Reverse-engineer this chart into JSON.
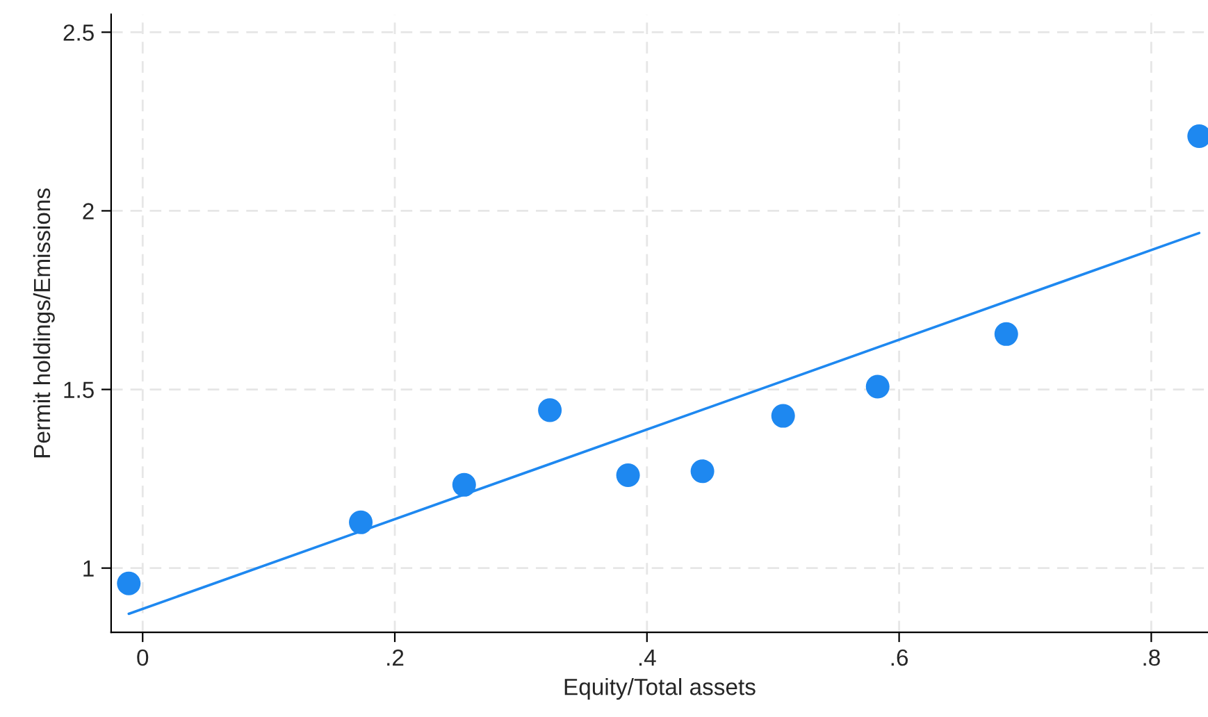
{
  "chart_data": {
    "type": "scatter",
    "xlabel": "Equity/Total assets",
    "ylabel": "Permit holdings/Emissions",
    "series": [
      {
        "color": "#1e88f0",
        "x": [
          -0.011,
          0.173,
          0.255,
          0.323,
          0.385,
          0.444,
          0.508,
          0.583,
          0.685,
          0.838
        ],
        "values": [
          0.957,
          1.128,
          1.233,
          1.442,
          1.26,
          1.271,
          1.426,
          1.508,
          1.655,
          2.209
        ]
      },
      {
        "type": "line",
        "marker": "none",
        "color": "#1e88f0",
        "x": [
          -0.011,
          0.838
        ],
        "values": [
          0.872,
          1.938
        ]
      }
    ],
    "marker": "circle",
    "grid": true,
    "xlim": [
      -0.025,
      0.845
    ],
    "ylim": [
      0.82,
      2.55
    ],
    "xticks": [
      0,
      {
        "value": 0.2,
        "label": ".2"
      },
      {
        "value": 0.4,
        "label": ".4"
      },
      {
        "value": 0.6,
        "label": ".6"
      },
      {
        "value": 0.8,
        "label": ".8"
      }
    ],
    "yticks": [
      1,
      1.5,
      2,
      2.5
    ]
  }
}
